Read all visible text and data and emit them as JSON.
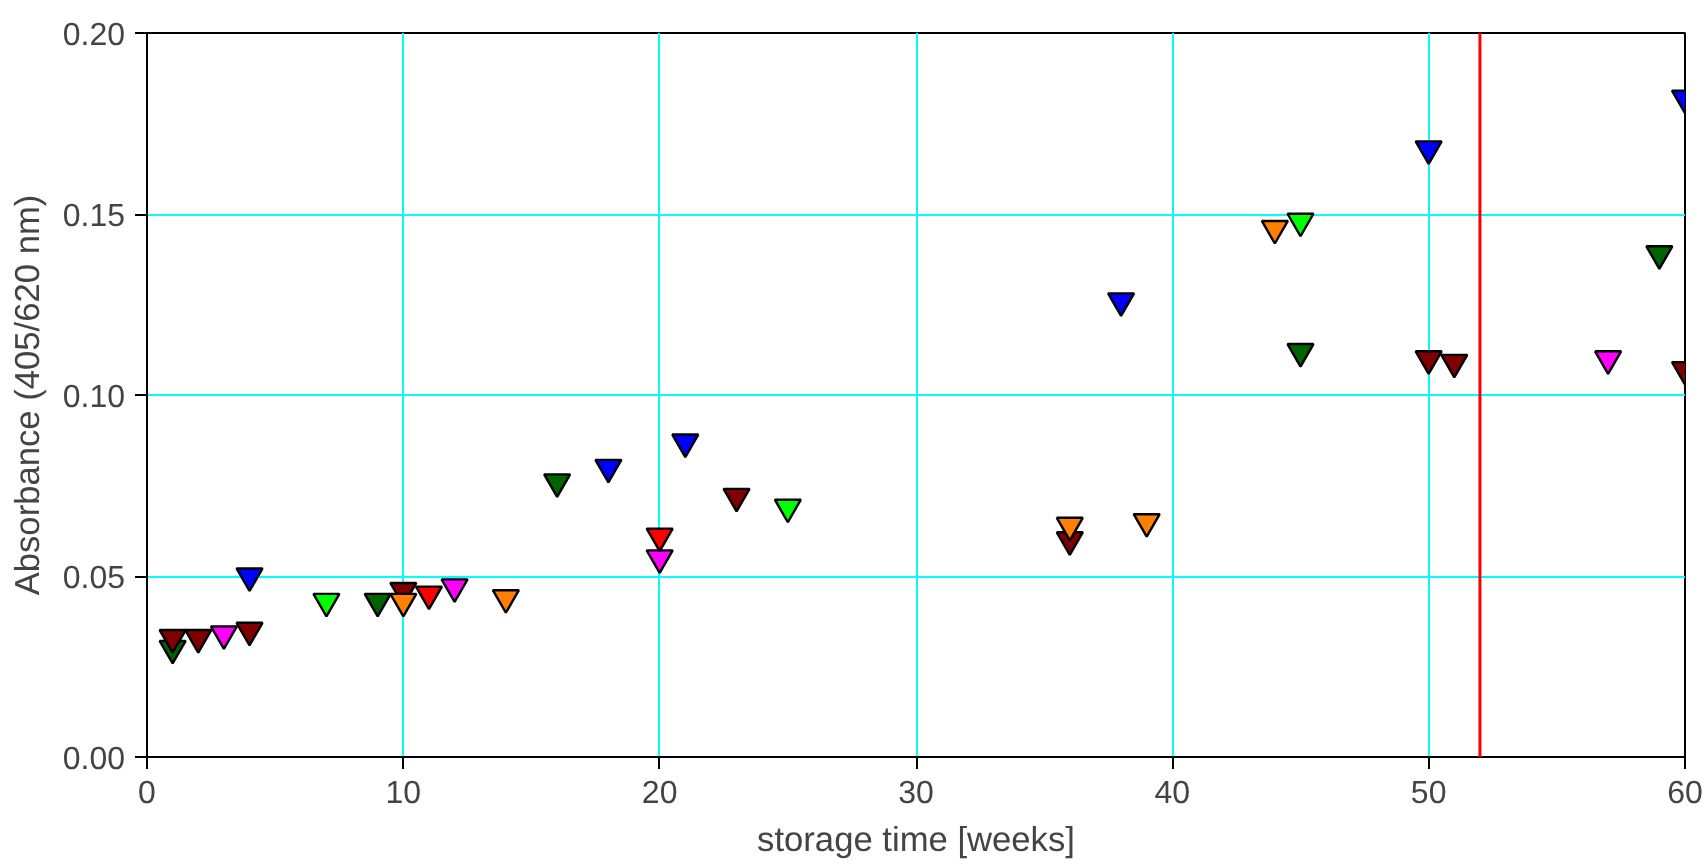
{
  "chart_data": {
    "type": "scatter",
    "xlabel": "storage time [weeks]",
    "ylabel": "Absorbance (405/620 nm)",
    "xlim": [
      0,
      60
    ],
    "ylim": [
      0,
      0.2
    ],
    "xticks": [
      0,
      10,
      20,
      30,
      40,
      50,
      60
    ],
    "yticks": [
      {
        "value": 0,
        "label": "0.00"
      },
      {
        "value": 0.05,
        "label": "0.05"
      },
      {
        "value": 0.1,
        "label": "0.10"
      },
      {
        "value": 0.15,
        "label": "0.15"
      },
      {
        "value": 0.2,
        "label": "0.20"
      }
    ],
    "grid": true,
    "marker": "triangle",
    "ref_lines": [
      {
        "axis": "x",
        "value": 52,
        "color": "#ff0000"
      }
    ],
    "series": [
      {
        "color": "#006400",
        "x": [
          1,
          9,
          16,
          45,
          59
        ],
        "values": [
          0.03,
          0.043,
          0.076,
          0.112,
          0.139
        ]
      },
      {
        "color": "#800000",
        "x": [
          1,
          2,
          4,
          10,
          23,
          36,
          50,
          51,
          60
        ],
        "values": [
          0.033,
          0.033,
          0.035,
          0.046,
          0.072,
          0.06,
          0.11,
          0.109,
          0.107
        ]
      },
      {
        "color": "#ff00ff",
        "x": [
          3,
          12,
          20,
          57
        ],
        "values": [
          0.034,
          0.047,
          0.055,
          0.11
        ]
      },
      {
        "color": "#0000ff",
        "x": [
          4,
          18,
          21,
          38,
          50,
          60
        ],
        "values": [
          0.05,
          0.08,
          0.087,
          0.126,
          0.168,
          0.182
        ]
      },
      {
        "color": "#00ff00",
        "x": [
          7,
          25,
          45
        ],
        "values": [
          0.043,
          0.069,
          0.148
        ]
      },
      {
        "color": "#ff8000",
        "x": [
          10,
          14,
          36,
          39,
          44
        ],
        "values": [
          0.043,
          0.044,
          0.064,
          0.065,
          0.146
        ]
      },
      {
        "color": "#ff0000",
        "x": [
          11,
          20
        ],
        "values": [
          0.045,
          0.061
        ]
      }
    ]
  }
}
